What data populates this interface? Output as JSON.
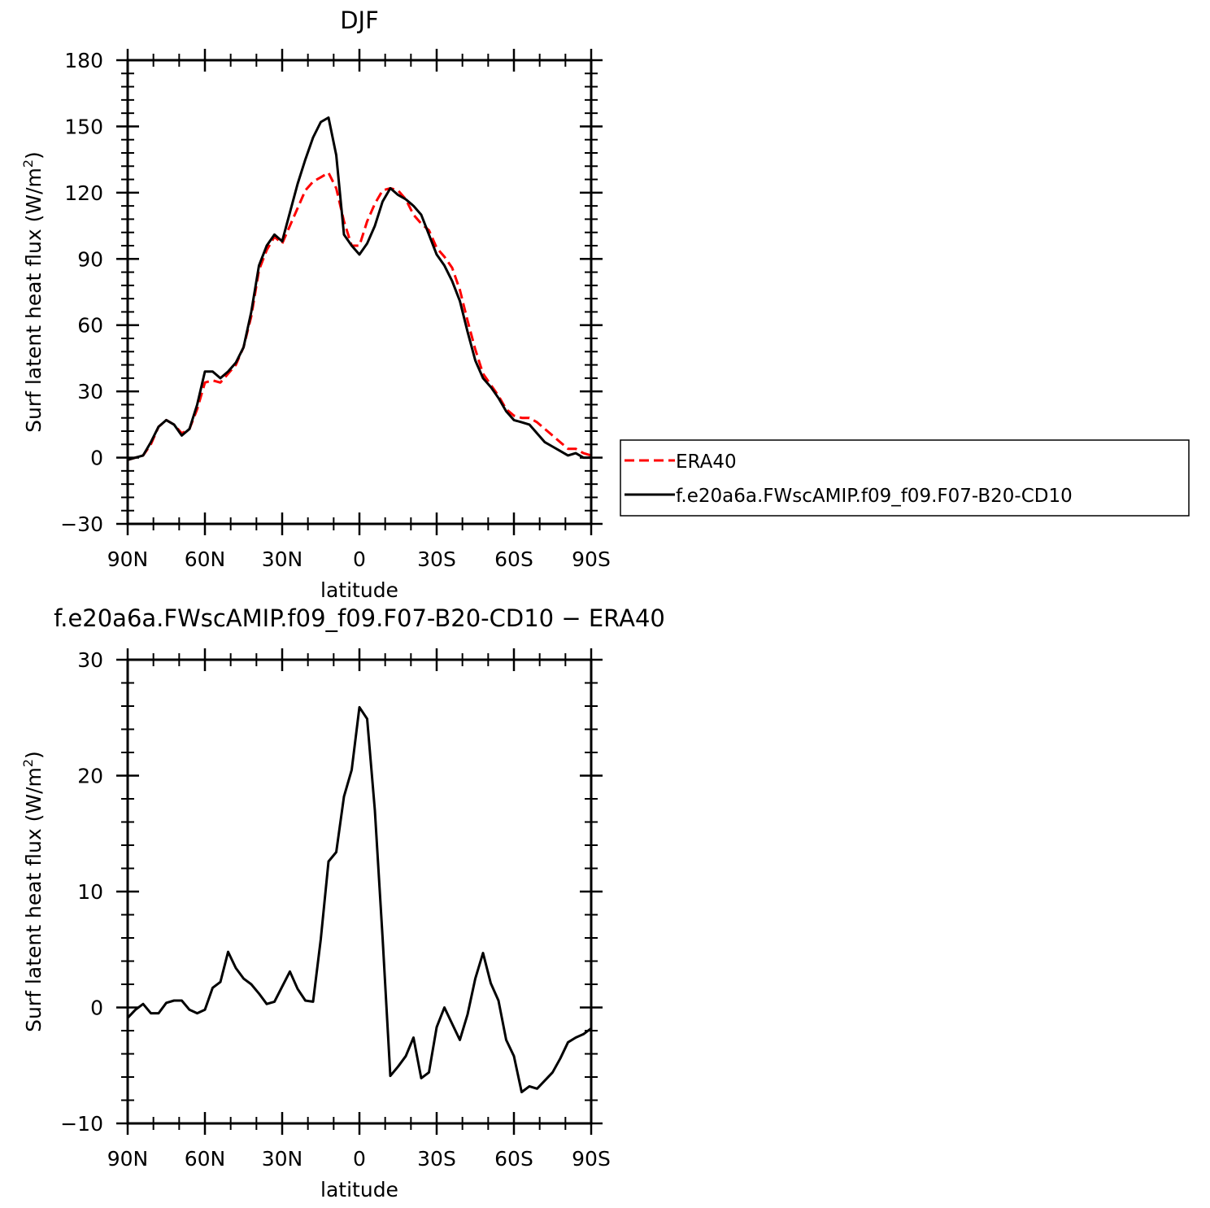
{
  "chart_data": [
    {
      "type": "line",
      "title": "DJF",
      "xlabel": "latitude",
      "ylabel": "Surf latent heat flux (W/m²)",
      "ylabel_parts": {
        "text": "Surf latent heat flux (W/m",
        "sup": "2",
        "close": ")"
      },
      "xlim": [
        90,
        -90
      ],
      "ylim": [
        -30,
        180
      ],
      "x_ticks": [
        90,
        60,
        30,
        0,
        -30,
        -60,
        -90
      ],
      "x_tick_labels": [
        "90N",
        "60N",
        "30N",
        "0",
        "30S",
        "60S",
        "90S"
      ],
      "y_ticks": [
        -30,
        0,
        30,
        60,
        90,
        120,
        150,
        180
      ],
      "y_tick_labels": [
        "−30",
        "0",
        "30",
        "60",
        "90",
        "120",
        "150",
        "180"
      ],
      "x": [
        90,
        87,
        84,
        81,
        78,
        75,
        72,
        69,
        66,
        63,
        60,
        57,
        54,
        51,
        48,
        45,
        42,
        39,
        36,
        33,
        30,
        27,
        24,
        21,
        18,
        15,
        12,
        9,
        6,
        3,
        0,
        -3,
        -6,
        -9,
        -12,
        -15,
        -18,
        -21,
        -24,
        -27,
        -30,
        -33,
        -36,
        -39,
        -42,
        -45,
        -48,
        -51,
        -54,
        -57,
        -60,
        -63,
        -66,
        -69,
        -72,
        -75,
        -78,
        -81,
        -84,
        -87,
        -90
      ],
      "series": [
        {
          "name": "ERA40",
          "color": "#ff0000",
          "dash": "dashed",
          "values": [
            -1,
            0,
            1,
            6,
            14,
            17,
            15,
            11,
            13,
            22,
            34,
            35,
            34,
            38,
            42,
            50,
            64,
            85,
            94,
            100,
            97,
            105,
            113,
            121,
            125,
            127,
            129,
            122,
            107,
            96,
            96,
            107,
            115,
            121,
            122,
            121,
            117,
            110,
            106,
            103,
            95,
            91,
            86,
            76,
            62,
            49,
            38,
            33,
            28,
            22,
            19,
            18,
            18,
            16,
            13,
            10,
            7,
            4,
            4,
            2,
            1
          ]
        },
        {
          "name": "f.e20a6a.FWscAMIP.f09_f09.F07-B20-CD10",
          "color": "#000000",
          "dash": "solid",
          "values": [
            -1,
            0,
            1,
            7,
            14,
            17,
            15,
            10,
            13,
            24,
            39,
            39,
            36,
            39,
            43,
            50,
            66,
            87,
            96,
            101,
            98,
            111,
            124,
            135,
            145,
            152,
            154,
            137,
            101,
            96,
            92,
            97,
            105,
            116,
            122,
            119,
            117,
            114,
            110,
            101,
            92,
            87,
            80,
            71,
            57,
            44,
            36,
            32,
            27,
            21,
            17,
            16,
            15,
            11,
            7,
            5,
            3,
            1,
            2,
            0,
            0
          ]
        }
      ],
      "legend": {
        "placement": "right",
        "entries": [
          {
            "label": "ERA40",
            "color": "#ff0000",
            "dash": "dashed"
          },
          {
            "label": "f.e20a6a.FWscAMIP.f09_f09.F07-B20-CD10",
            "color": "#000000",
            "dash": "solid"
          }
        ]
      }
    },
    {
      "type": "line",
      "title": "f.e20a6a.FWscAMIP.f09_f09.F07-B20-CD10 − ERA40",
      "xlabel": "latitude",
      "ylabel": "Surf latent heat flux (W/m²)",
      "ylabel_parts": {
        "text": "Surf latent heat flux (W/m",
        "sup": "2",
        "close": ")"
      },
      "xlim": [
        90,
        -90
      ],
      "ylim": [
        -10,
        30
      ],
      "x_ticks": [
        90,
        60,
        30,
        0,
        -30,
        -60,
        -90
      ],
      "x_tick_labels": [
        "90N",
        "60N",
        "30N",
        "0",
        "30S",
        "60S",
        "90S"
      ],
      "y_ticks": [
        -10,
        0,
        10,
        20,
        30
      ],
      "y_tick_labels": [
        "−10",
        "0",
        "10",
        "20",
        "30"
      ],
      "x": [
        90,
        87,
        84,
        81,
        78,
        75,
        72,
        69,
        66,
        63,
        60,
        57,
        54,
        51,
        48,
        45,
        42,
        39,
        36,
        33,
        30,
        27,
        24,
        21,
        18,
        15,
        12,
        9,
        6,
        3,
        0,
        -3,
        -6,
        -9,
        -12,
        -15,
        -18,
        -21,
        -24,
        -27,
        -30,
        -33,
        -36,
        -39,
        -42,
        -45,
        -48,
        -51,
        -54,
        -57,
        -60,
        -63,
        -66,
        -69,
        -72,
        -75,
        -78,
        -81,
        -84,
        -87,
        -90
      ],
      "series": [
        {
          "name": "",
          "color": "#000000",
          "dash": "solid",
          "values": [
            -0.9,
            -0.2,
            0.3,
            -0.5,
            -0.5,
            0.4,
            0.6,
            0.6,
            -0.2,
            -0.5,
            -0.2,
            1.7,
            2.2,
            4.8,
            3.4,
            2.5,
            2.0,
            1.2,
            0.3,
            0.5,
            1.8,
            3.1,
            1.6,
            0.6,
            0.5,
            5.9,
            12.6,
            13.4,
            18.2,
            20.5,
            25.9,
            24.9,
            17.0,
            6.0,
            -5.9,
            -5.1,
            -4.2,
            -2.6,
            -6.1,
            -5.6,
            -1.7,
            0.0,
            -1.4,
            -2.8,
            -0.6,
            2.5,
            4.7,
            2.1,
            0.6,
            -2.8,
            -4.2,
            -7.3,
            -6.8,
            -7.0,
            -6.3,
            -5.6,
            -4.4,
            -3.0,
            -2.6,
            -2.3,
            -1.8
          ]
        }
      ]
    }
  ]
}
